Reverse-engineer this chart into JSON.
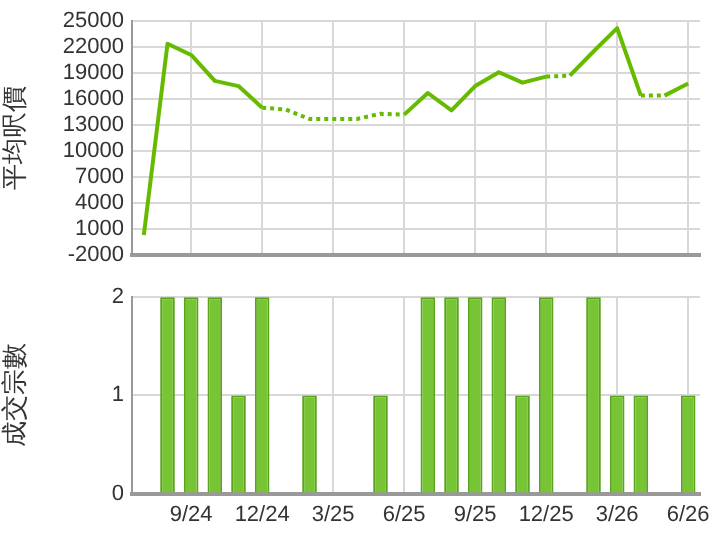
{
  "chart_data": [
    {
      "type": "line",
      "ylabel": "平均呎價",
      "categories": [
        null,
        null,
        null,
        null,
        null,
        null,
        null,
        null,
        null,
        null,
        null,
        null,
        null,
        null,
        null,
        null,
        null,
        null,
        null,
        null,
        null,
        null,
        null,
        null
      ],
      "series": [
        {
          "color": "#66bb00",
          "line_style": "solid",
          "values": [
            300,
            22400,
            21100,
            18100,
            17500,
            15000,
            null,
            null,
            null,
            null,
            null,
            14200,
            16700,
            14700,
            17500,
            19100,
            17900,
            18600,
            null,
            null,
            null,
            null,
            null,
            null
          ]
        },
        {
          "color": "#66bb00",
          "line_style": "dotted",
          "values": [
            null,
            null,
            null,
            null,
            null,
            15000,
            14800,
            13700,
            13700,
            13700,
            14300,
            14200,
            null,
            null,
            null,
            null,
            null,
            18600,
            18700,
            null,
            null,
            16400,
            16400,
            null
          ]
        },
        {
          "color": "#66bb00",
          "line_style": "solid",
          "values": [
            null,
            null,
            null,
            null,
            null,
            null,
            null,
            null,
            null,
            null,
            null,
            null,
            null,
            null,
            null,
            null,
            null,
            null,
            18700,
            21500,
            24200,
            16400,
            null,
            null
          ]
        },
        {
          "color": "#66bb00",
          "line_style": "solid",
          "values": [
            null,
            null,
            null,
            null,
            null,
            null,
            null,
            null,
            null,
            null,
            null,
            null,
            null,
            null,
            null,
            null,
            null,
            null,
            null,
            null,
            null,
            null,
            16400,
            17800
          ]
        }
      ],
      "ylim": [
        -2000,
        25000
      ],
      "yticks": [
        -2000,
        1000,
        4000,
        7000,
        10000,
        13000,
        16000,
        19000,
        22000,
        25000
      ],
      "grid": true,
      "marker": "none",
      "tick_labels": "y"
    },
    {
      "type": "bar",
      "ylabel": "成交宗數",
      "categories": [
        null,
        null,
        "9/24",
        null,
        null,
        "12/24",
        null,
        null,
        "3/25",
        null,
        null,
        "6/25",
        null,
        null,
        "9/25",
        null,
        null,
        "12/25",
        null,
        null,
        "3/26",
        null,
        null,
        "6/26"
      ],
      "values": [
        0,
        2,
        2,
        2,
        1,
        2,
        0,
        1,
        0,
        0,
        1,
        0,
        2,
        2,
        2,
        2,
        1,
        2,
        0,
        2,
        1,
        1,
        0,
        1
      ],
      "color": "#77c534",
      "ylim": [
        0,
        2
      ],
      "yticks": [
        0,
        1,
        2
      ],
      "grid": true
    }
  ]
}
